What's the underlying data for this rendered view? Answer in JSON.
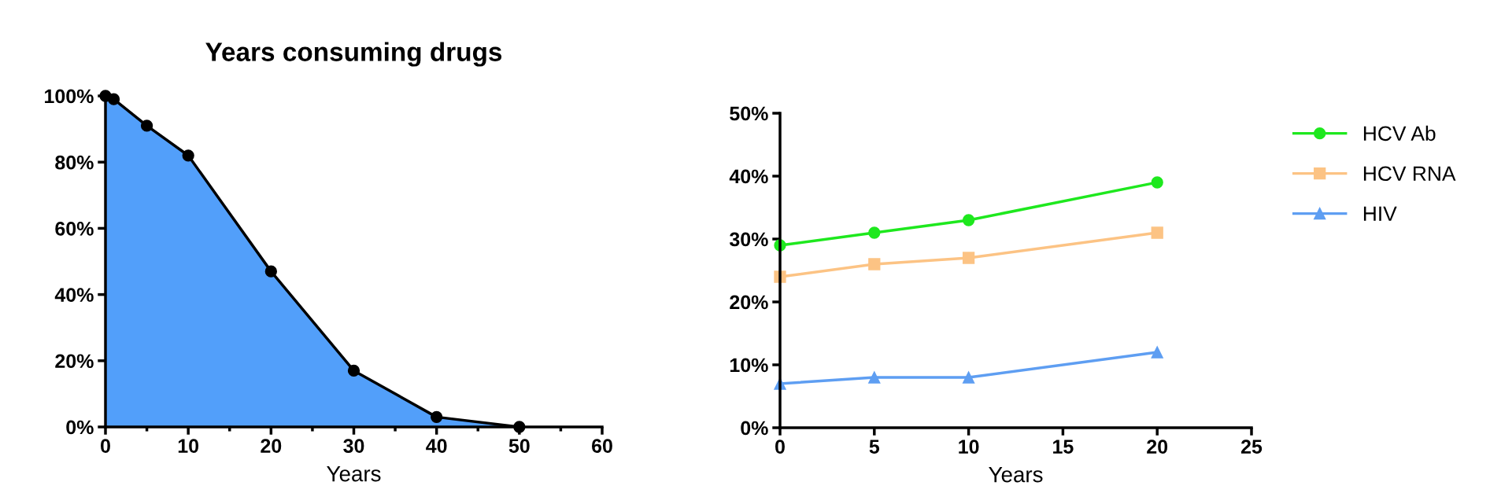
{
  "chart_data": [
    {
      "type": "area",
      "title": "Years consuming drugs",
      "xlabel": "Years",
      "x": [
        0,
        1,
        5,
        10,
        20,
        30,
        40,
        50
      ],
      "series": [
        {
          "color": "#529ffa",
          "values": [
            100,
            99,
            91,
            82,
            47,
            17,
            3,
            0
          ]
        }
      ],
      "marker": "circle",
      "xlim": [
        0,
        60
      ],
      "ylim": [
        0,
        100
      ],
      "xticks": [
        0,
        {
          "value": 5,
          "label": null
        },
        10,
        {
          "value": 15,
          "label": null
        },
        20,
        {
          "value": 25,
          "label": null
        },
        30,
        {
          "value": 35,
          "label": null
        },
        40,
        {
          "value": 45,
          "label": null
        },
        50,
        {
          "value": 55,
          "label": null
        },
        60
      ],
      "yticks": [
        {
          "value": 0,
          "label": "0%"
        },
        {
          "value": 20,
          "label": "20%"
        },
        {
          "value": 40,
          "label": "40%"
        },
        {
          "value": 60,
          "label": "60%"
        },
        {
          "value": 80,
          "label": "80%"
        },
        {
          "value": 100,
          "label": "100%"
        }
      ],
      "grid": false,
      "legend": false
    },
    {
      "type": "line",
      "xlabel": "Years",
      "x": [
        0,
        5,
        10,
        20
      ],
      "series": [
        {
          "name": "HCV Ab",
          "color": "#1ee81e",
          "marker": "circle",
          "values": [
            29,
            31,
            33,
            39
          ]
        },
        {
          "name": "HCV RNA",
          "color": "#fcc384",
          "marker": "square",
          "values": [
            24,
            26,
            27,
            31
          ]
        },
        {
          "name": "HIV",
          "color": "#5e9ef2",
          "marker": "triangle",
          "values": [
            7,
            8,
            8,
            12
          ]
        }
      ],
      "xlim": [
        0,
        25
      ],
      "ylim": [
        0,
        50
      ],
      "xticks": [
        0,
        5,
        10,
        15,
        20,
        25
      ],
      "yticks": [
        {
          "value": 0,
          "label": "0%"
        },
        {
          "value": 10,
          "label": "10%"
        },
        {
          "value": 20,
          "label": "20%"
        },
        {
          "value": 30,
          "label": "30%"
        },
        {
          "value": 40,
          "label": "40%"
        },
        {
          "value": 50,
          "label": "50%"
        }
      ],
      "grid": false,
      "legend": "right"
    }
  ]
}
